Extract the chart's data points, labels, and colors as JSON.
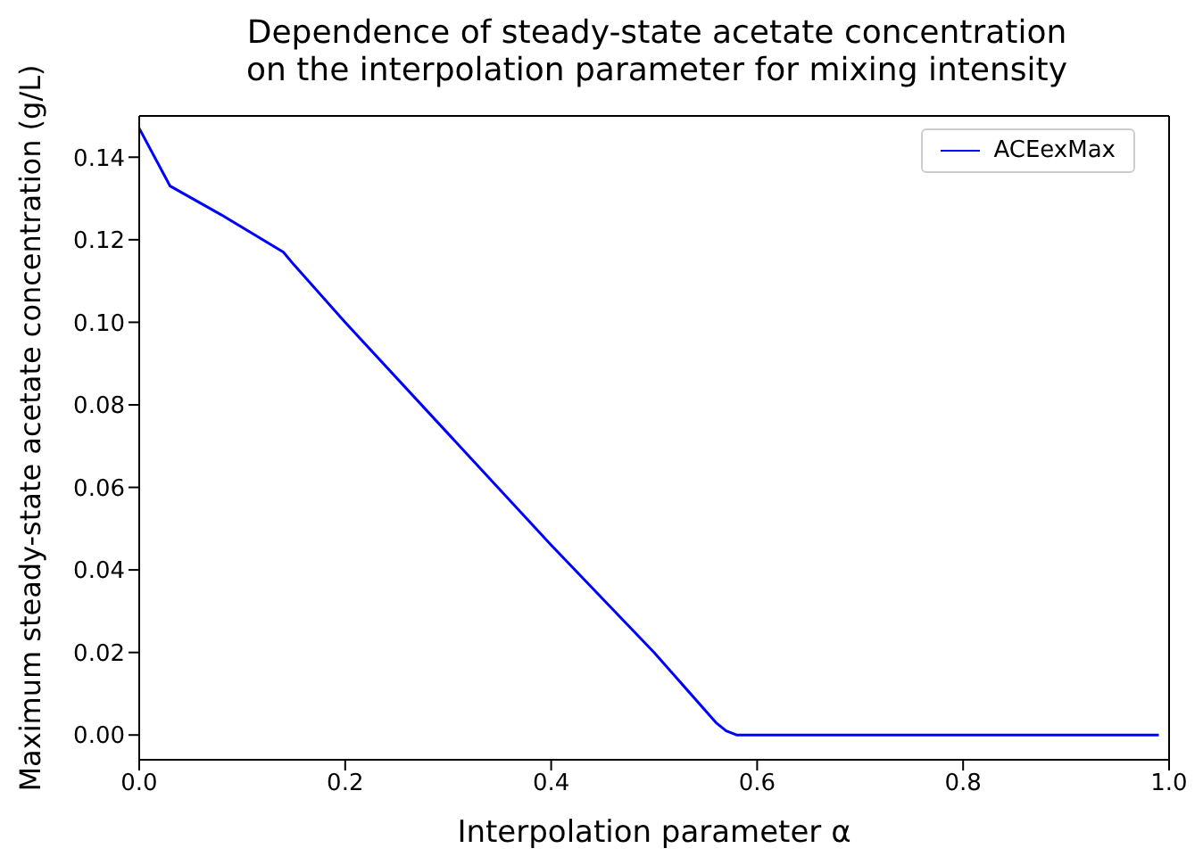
{
  "chart_data": {
    "type": "line",
    "title": "Dependence of steady-state acetate concentration\non the interpolation parameter for mixing intensity",
    "xlabel": "Interpolation parameter α",
    "ylabel": "Maximum steady-state acetate concentration (g/L)",
    "x": [
      0,
      0.03,
      0.08,
      0.14,
      0.15,
      0.2,
      0.3,
      0.4,
      0.5,
      0.56,
      0.57,
      0.58,
      0.7,
      0.85,
      0.99
    ],
    "series": [
      {
        "name": "ACEexMax",
        "color": "#0000ff",
        "values": [
          0.147,
          0.133,
          0.126,
          0.117,
          0.114,
          0.1,
          0.073,
          0.046,
          0.02,
          0.003,
          0.001,
          0,
          0,
          0,
          0
        ]
      }
    ],
    "xlim": [
      0,
      1
    ],
    "xticks": [
      {
        "value": 0,
        "label": "0.0"
      },
      {
        "value": 0.2,
        "label": "0.2"
      },
      {
        "value": 0.4,
        "label": "0.4"
      },
      {
        "value": 0.6,
        "label": "0.6"
      },
      {
        "value": 0.8,
        "label": "0.8"
      },
      {
        "value": 1,
        "label": "1.0"
      }
    ],
    "ylim": [
      -0.006,
      0.15
    ],
    "yticks": [
      {
        "value": 0,
        "label": "0.00"
      },
      {
        "value": 0.02,
        "label": "0.02"
      },
      {
        "value": 0.04,
        "label": "0.04"
      },
      {
        "value": 0.06,
        "label": "0.06"
      },
      {
        "value": 0.08,
        "label": "0.08"
      },
      {
        "value": 0.1,
        "label": "0.10"
      },
      {
        "value": 0.12,
        "label": "0.12"
      },
      {
        "value": 0.14,
        "label": "0.14"
      }
    ],
    "grid": false,
    "legend": "top right",
    "marker": "none",
    "line_style": "solid"
  }
}
